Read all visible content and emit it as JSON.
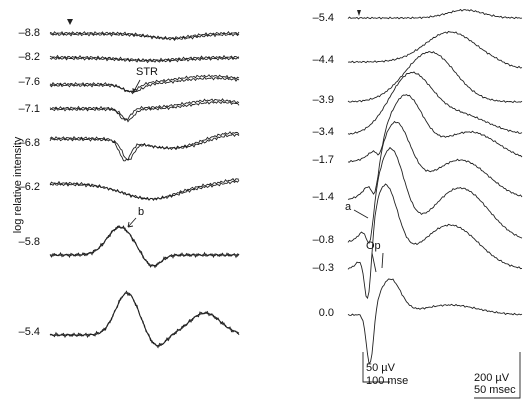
{
  "figure": {
    "y_axis_label": "log relative intensity",
    "left_panel": {
      "labels": [
        "–8.8",
        "–8.2",
        "–7.6",
        "–7.1",
        "–6.8",
        "–6.2",
        "–5.8",
        "–5.4"
      ],
      "annotations": [
        "STR",
        "b"
      ],
      "scale_bar": [
        "50 µV",
        "100 mse"
      ]
    },
    "right_panel": {
      "labels": [
        "–5.4",
        "–4.4",
        "–3.9",
        "–3.4",
        "–1.7",
        "–1.4",
        "–0.8",
        "–0.3",
        "0.0"
      ],
      "annotations": [
        "a",
        "Op"
      ],
      "scale_bar": [
        "200 µV",
        "50 msec"
      ]
    }
  }
}
